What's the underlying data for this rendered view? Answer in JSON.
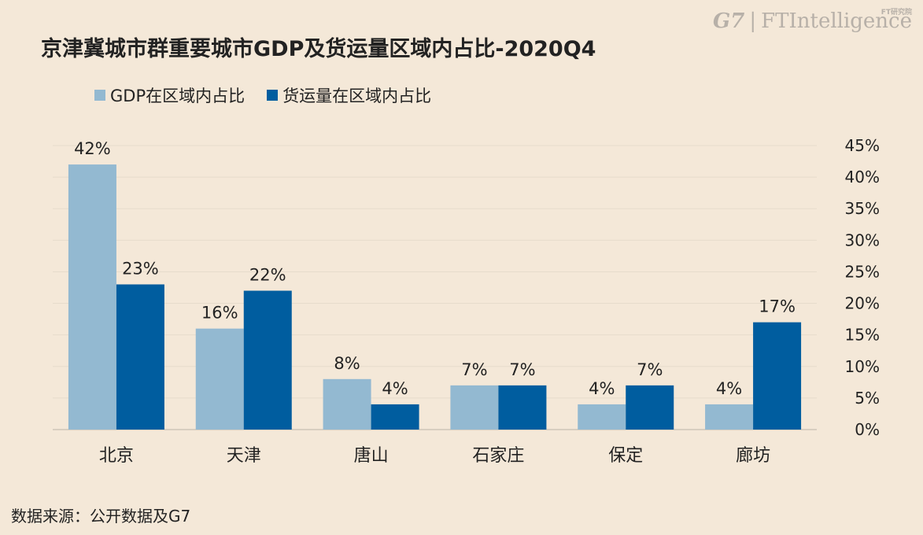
{
  "chart_data": {
    "type": "bar",
    "title": "京津冀城市群重要城市GDP及货运量区域内占比-2020Q4",
    "categories": [
      "北京",
      "天津",
      "唐山",
      "石家庄",
      "保定",
      "廊坊"
    ],
    "series": [
      {
        "name": "GDP在区域内占比",
        "values": [
          42,
          16,
          8,
          7,
          4,
          4
        ],
        "labels": [
          "42%",
          "16%",
          "8%",
          "7%",
          "4%",
          "4%"
        ],
        "color": "#93b9d1"
      },
      {
        "name": "货运量在区域内占比",
        "values": [
          23,
          22,
          4,
          7,
          7,
          17
        ],
        "labels": [
          "23%",
          "22%",
          "4%",
          "7%",
          "7%",
          "17%"
        ],
        "color": "#005d9f"
      }
    ],
    "ylim": [
      0,
      45
    ],
    "yticks": [
      "0%",
      "5%",
      "10%",
      "15%",
      "20%",
      "25%",
      "30%",
      "35%",
      "40%",
      "45%"
    ],
    "y_axis_side": "right",
    "grid": true,
    "legend": "top-left"
  },
  "logo": {
    "g7": "G7",
    "sep": "|",
    "ft": "FTIntelligence",
    "sub": "FT研究院"
  },
  "source": "数据来源：公开数据及G7",
  "colors": {
    "background": "#f4e8d8",
    "grid": "#e6dccc",
    "axis": "#cfc6b8"
  }
}
